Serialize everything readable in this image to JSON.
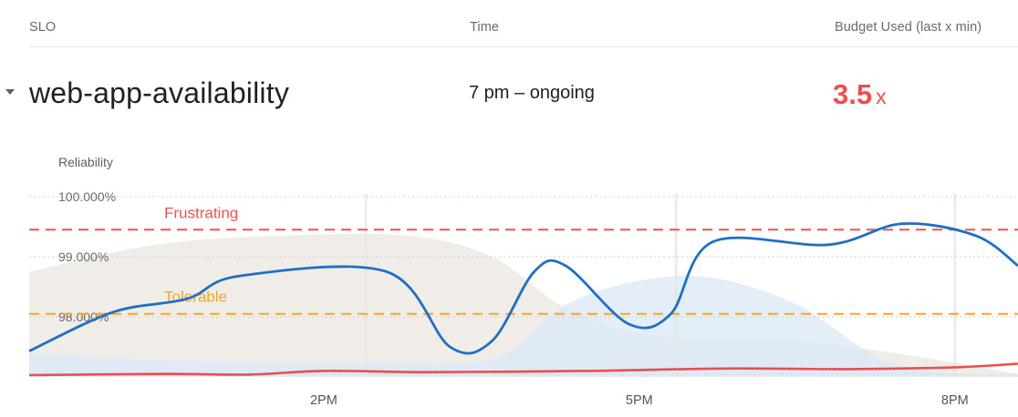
{
  "header": {
    "slo_label": "SLO",
    "time_label": "Time",
    "budget_label": "Budget Used (last x min)"
  },
  "row": {
    "slo_name": "web-app-availability",
    "time_value": "7 pm – ongoing",
    "budget_value": "3.5",
    "budget_unit": "x"
  },
  "colors": {
    "frustrating": "#ef5350",
    "tolerable": "#f5a623",
    "reliability_line": "#1f6fc4",
    "burn_line": "#e85050",
    "band_gray": "#efece8",
    "band_blue": "#dbe8f7",
    "budget": "#ef4d4d"
  },
  "chart_data": {
    "type": "line",
    "ylabel": "Reliability",
    "ylim": [
      97.0,
      100.0
    ],
    "yticks": [
      "100.000%",
      "99.000%",
      "98.000%"
    ],
    "ytick_values": [
      100.0,
      99.0,
      98.0
    ],
    "x_ticks": [
      "2PM",
      "5PM",
      "8PM"
    ],
    "x_tick_values": [
      14,
      17,
      20
    ],
    "xlim": [
      11.2,
      20.6
    ],
    "thresholds": [
      {
        "label": "Frustrating",
        "value": 99.45
      },
      {
        "label": "Tolerable",
        "value": 98.05
      }
    ],
    "reliability": [
      {
        "x": 11.2,
        "y": 97.43
      },
      {
        "x": 12.0,
        "y": 98.08
      },
      {
        "x": 12.7,
        "y": 98.3
      },
      {
        "x": 13.2,
        "y": 98.68
      },
      {
        "x": 14.6,
        "y": 98.75
      },
      {
        "x": 15.2,
        "y": 97.5
      },
      {
        "x": 15.6,
        "y": 97.6
      },
      {
        "x": 16.0,
        "y": 98.75
      },
      {
        "x": 16.3,
        "y": 98.85
      },
      {
        "x": 16.9,
        "y": 97.88
      },
      {
        "x": 17.3,
        "y": 98.05
      },
      {
        "x": 17.7,
        "y": 99.25
      },
      {
        "x": 18.8,
        "y": 99.2
      },
      {
        "x": 19.5,
        "y": 99.55
      },
      {
        "x": 20.2,
        "y": 99.35
      },
      {
        "x": 20.6,
        "y": 98.85
      }
    ],
    "burn": [
      {
        "x": 11.2,
        "y": 97.03
      },
      {
        "x": 12.5,
        "y": 97.05
      },
      {
        "x": 13.3,
        "y": 97.04
      },
      {
        "x": 14.0,
        "y": 97.1
      },
      {
        "x": 15.0,
        "y": 97.08
      },
      {
        "x": 16.5,
        "y": 97.1
      },
      {
        "x": 17.8,
        "y": 97.14
      },
      {
        "x": 19.0,
        "y": 97.13
      },
      {
        "x": 20.0,
        "y": 97.16
      },
      {
        "x": 20.6,
        "y": 97.22
      }
    ],
    "band_gray": [
      {
        "x": 11.2,
        "y": 98.75
      },
      {
        "x": 12.4,
        "y": 99.2
      },
      {
        "x": 13.6,
        "y": 99.35
      },
      {
        "x": 14.8,
        "y": 99.35
      },
      {
        "x": 15.6,
        "y": 99.0
      },
      {
        "x": 16.3,
        "y": 98.15
      },
      {
        "x": 17.1,
        "y": 97.7
      },
      {
        "x": 18.5,
        "y": 97.6
      },
      {
        "x": 19.6,
        "y": 97.35
      },
      {
        "x": 20.6,
        "y": 97.05
      }
    ],
    "band_blue": [
      {
        "x": 11.2,
        "y": 97.4
      },
      {
        "x": 12.2,
        "y": 97.3
      },
      {
        "x": 13.2,
        "y": 97.25
      },
      {
        "x": 14.4,
        "y": 97.25
      },
      {
        "x": 15.6,
        "y": 97.3
      },
      {
        "x": 16.3,
        "y": 98.2
      },
      {
        "x": 17.0,
        "y": 98.6
      },
      {
        "x": 17.7,
        "y": 98.65
      },
      {
        "x": 18.5,
        "y": 98.2
      },
      {
        "x": 19.3,
        "y": 97.3
      },
      {
        "x": 20.0,
        "y": 97.05
      },
      {
        "x": 20.6,
        "y": 97.05
      }
    ]
  }
}
